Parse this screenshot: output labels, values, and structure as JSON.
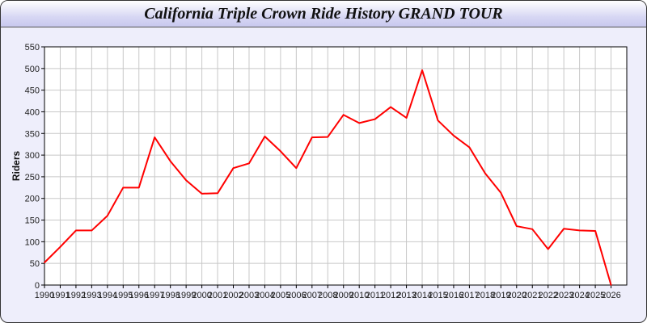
{
  "chart_data": {
    "type": "line",
    "title": "California Triple Crown Ride History GRAND TOUR",
    "xlabel": "",
    "ylabel": "Riders",
    "ylim": [
      0,
      550
    ],
    "yticks": [
      0,
      50,
      100,
      150,
      200,
      250,
      300,
      350,
      400,
      450,
      500,
      550
    ],
    "xlim": [
      1990,
      2027
    ],
    "grid": true,
    "line_color": "#ff0000",
    "x": [
      1990,
      1991,
      1992,
      1993,
      1994,
      1995,
      1996,
      1997,
      1998,
      1999,
      2000,
      2001,
      2002,
      2003,
      2004,
      2005,
      2006,
      2007,
      2008,
      2009,
      2010,
      2011,
      2012,
      2013,
      2014,
      2015,
      2016,
      2017,
      2018,
      2019,
      2020,
      2021,
      2022,
      2023,
      2024,
      2025,
      2026
    ],
    "values": [
      52,
      88,
      126,
      126,
      160,
      225,
      225,
      341,
      286,
      242,
      211,
      212,
      270,
      281,
      343,
      309,
      270,
      341,
      342,
      393,
      374,
      383,
      411,
      386,
      496,
      380,
      345,
      318,
      258,
      213,
      136,
      129,
      83,
      130,
      126,
      125,
      0
    ]
  }
}
